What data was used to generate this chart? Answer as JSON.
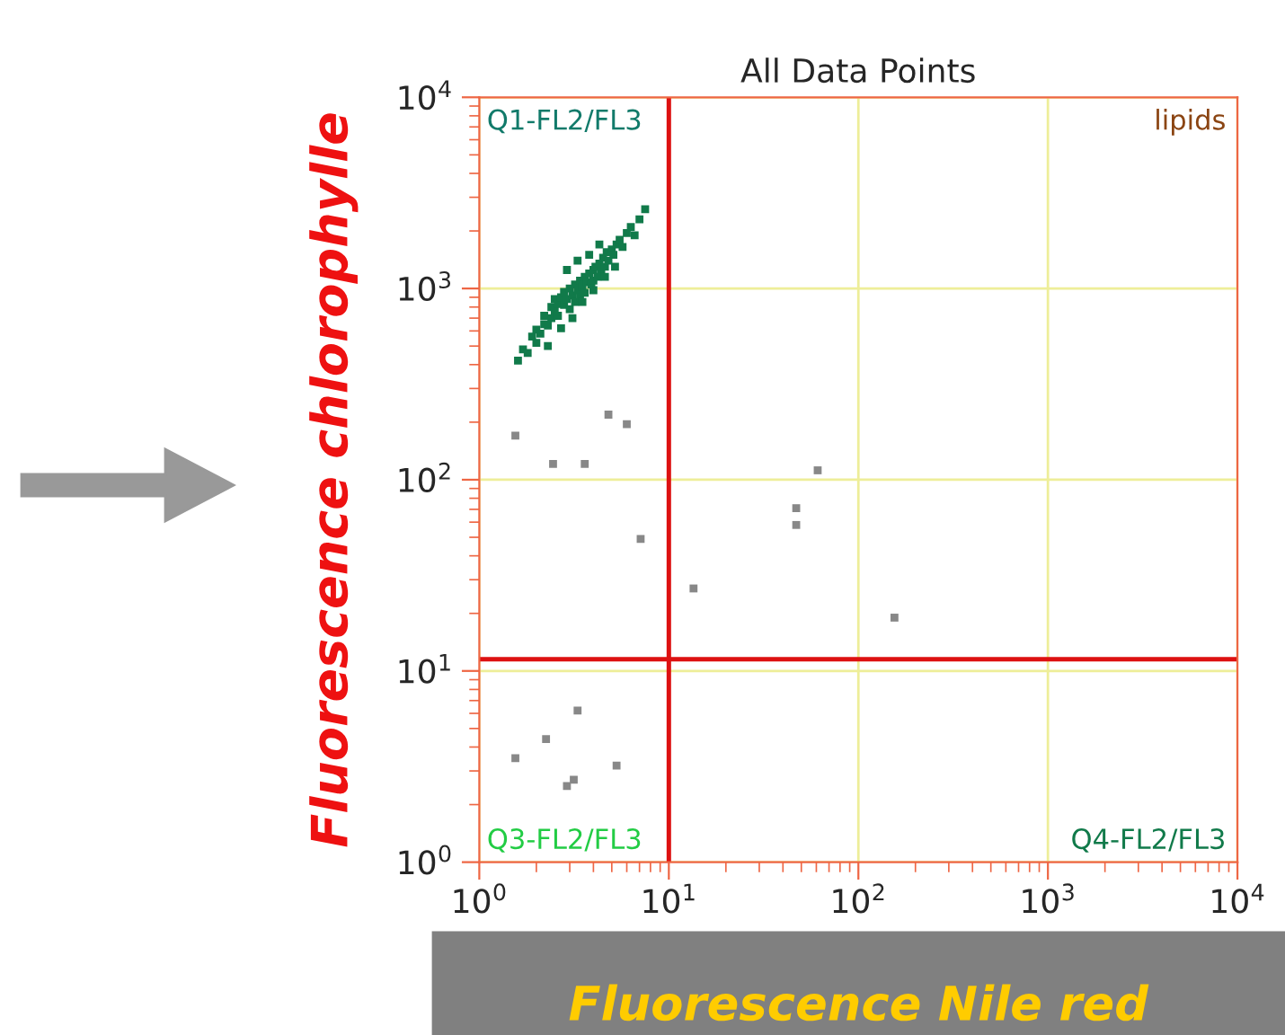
{
  "chart_data": {
    "type": "scatter",
    "title": "All Data Points",
    "xlabel": "Fluorescence Nile red",
    "ylabel": "Fluorescence chlorophylle",
    "log": "xy",
    "xlim": [
      1,
      10000
    ],
    "ylim": [
      1,
      10000
    ],
    "xticks": [
      {
        "value": 1,
        "label": "10$^{0}$"
      },
      {
        "value": 10,
        "label": "10$^{1}$"
      },
      {
        "value": 100,
        "label": "10$^{2}$"
      },
      {
        "value": 1000,
        "label": "10$^{3}$"
      },
      {
        "value": 10000,
        "label": "10$^{4}$"
      }
    ],
    "yticks": [
      {
        "value": 1,
        "label": "10$^{0}$"
      },
      {
        "value": 10,
        "label": "10$^{1}$"
      },
      {
        "value": 100,
        "label": "10$^{2}$"
      },
      {
        "value": 1000,
        "label": "10$^{3}$"
      },
      {
        "value": 10000,
        "label": "10$^{4}$"
      }
    ],
    "grid": true,
    "marker": "square",
    "ref_lines": [
      {
        "axis": "x",
        "value": 10,
        "color": "#dd1111"
      },
      {
        "axis": "y",
        "value": 11.5,
        "color": "#dd1111"
      }
    ],
    "annotations": [
      "Q1-FL2/FL3",
      "lipids",
      "Q3-FL2/FL3",
      "Q4-FL2/FL3"
    ],
    "series": [
      {
        "color": "#117a4a",
        "x": [
          1.6,
          1.7,
          1.8,
          1.9,
          2.0,
          2.0,
          2.1,
          2.2,
          2.2,
          2.3,
          2.4,
          2.4,
          2.5,
          2.5,
          2.6,
          2.6,
          2.7,
          2.8,
          2.8,
          2.9,
          3.0,
          3.0,
          3.1,
          3.2,
          3.2,
          3.3,
          3.4,
          3.4,
          3.5,
          3.6,
          3.6,
          3.7,
          3.8,
          3.9,
          4.0,
          4.0,
          4.1,
          4.2,
          4.3,
          4.4,
          4.5,
          4.6,
          4.7,
          4.8,
          5.0,
          5.1,
          5.3,
          5.5,
          5.7,
          6.0,
          6.3,
          6.6,
          7.0,
          7.5,
          2.3,
          2.7,
          3.1,
          3.5,
          4.0,
          4.6,
          5.2,
          2.9,
          3.3,
          3.8,
          4.3
        ],
        "values": [
          420,
          480,
          460,
          560,
          520,
          610,
          580,
          650,
          720,
          640,
          700,
          800,
          760,
          880,
          720,
          830,
          900,
          820,
          960,
          880,
          1000,
          780,
          920,
          1050,
          850,
          980,
          1100,
          900,
          1020,
          1150,
          950,
          1080,
          1200,
          1050,
          1250,
          1100,
          1300,
          1150,
          1350,
          1250,
          1450,
          1300,
          1550,
          1400,
          1600,
          1500,
          1700,
          1800,
          1650,
          1950,
          2100,
          1900,
          2300,
          2600,
          500,
          620,
          700,
          850,
          980,
          1150,
          1300,
          1250,
          1400,
          1500,
          1700
        ]
      },
      {
        "color": "#888888",
        "x": [
          1.55,
          4.8,
          6.0,
          2.45,
          3.6,
          7.1,
          13.5,
          47,
          47,
          61,
          155,
          3.3,
          2.25,
          1.55,
          5.3,
          3.15,
          2.9
        ],
        "values": [
          170,
          219,
          195,
          121,
          121,
          49,
          27,
          71,
          58,
          112,
          19,
          6.2,
          4.4,
          3.5,
          3.2,
          2.7,
          2.5
        ]
      }
    ]
  }
}
